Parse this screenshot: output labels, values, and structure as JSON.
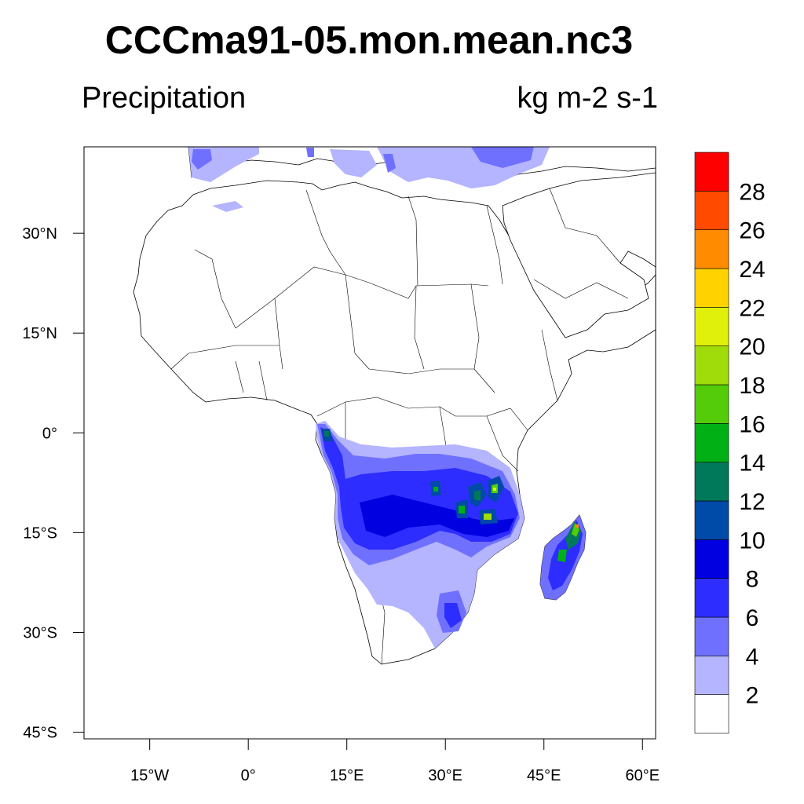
{
  "title": "CCCma91-05.mon.mean.nc3",
  "variable_label": "Precipitation",
  "units_label": "kg m-2 s-1",
  "map": {
    "projection": "cylindrical equidistant",
    "lon_range": [
      -25,
      62
    ],
    "lat_range": [
      -46,
      43
    ],
    "lat_ticks": [
      {
        "label": "30°N",
        "value": 30
      },
      {
        "label": "15°N",
        "value": 15
      },
      {
        "label": "0°",
        "value": 0
      },
      {
        "label": "15°S",
        "value": -15
      },
      {
        "label": "30°S",
        "value": -30
      },
      {
        "label": "45°S",
        "value": -45
      }
    ],
    "lon_ticks": [
      {
        "label": "15°W",
        "value": -15
      },
      {
        "label": "0°",
        "value": 0
      },
      {
        "label": "15°E",
        "value": 15
      },
      {
        "label": "30°E",
        "value": 30
      },
      {
        "label": "45°E",
        "value": 45
      },
      {
        "label": "60°E",
        "value": 60
      }
    ]
  },
  "colorbar": {
    "labels": [
      "2",
      "4",
      "6",
      "8",
      "10",
      "12",
      "14",
      "16",
      "18",
      "20",
      "22",
      "24",
      "26",
      "28"
    ],
    "colors": [
      "#ffffff",
      "#b4b4ff",
      "#7070ff",
      "#2d2dff",
      "#0000e0",
      "#004aa8",
      "#00785a",
      "#00b014",
      "#54cc0a",
      "#a0dc0a",
      "#e0f00a",
      "#ffd200",
      "#ff8c00",
      "#ff4a00",
      "#ff0000"
    ]
  }
}
